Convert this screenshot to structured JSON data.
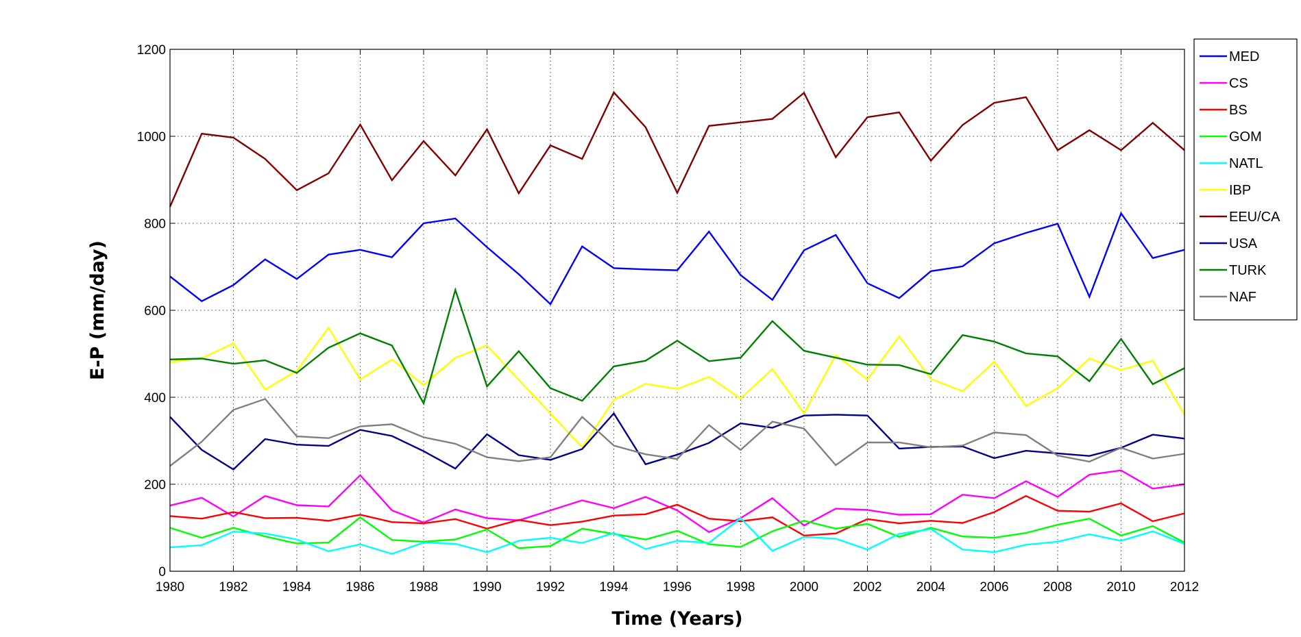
{
  "chart_data": {
    "type": "line",
    "title": "",
    "xlabel": "Time (Years)",
    "ylabel": "E-P (mm/day)",
    "xlim": [
      1980,
      2012
    ],
    "ylim": [
      0,
      1200
    ],
    "grid": true,
    "legend_position": "right, outside",
    "xticks": [
      "1980",
      "1982",
      "1984",
      "1986",
      "1988",
      "1990",
      "1992",
      "1994",
      "1996",
      "1998",
      "2000",
      "2002",
      "2004",
      "2006",
      "2008",
      "2010",
      "2012"
    ],
    "yticks": [
      "0",
      "200",
      "400",
      "600",
      "800",
      "1000",
      "1200"
    ],
    "x": [
      1980,
      1981,
      1982,
      1983,
      1984,
      1985,
      1986,
      1987,
      1988,
      1989,
      1990,
      1991,
      1992,
      1993,
      1994,
      1995,
      1996,
      1997,
      1998,
      1999,
      2000,
      2001,
      2002,
      2003,
      2004,
      2005,
      2006,
      2007,
      2008,
      2009,
      2010,
      2011,
      2012
    ],
    "series": [
      {
        "name": "MED",
        "color": "#0000ff",
        "values": [
          678,
          621,
          658,
          717,
          672,
          728,
          739,
          722,
          800,
          811,
          745,
          683,
          614,
          747,
          697,
          694,
          692,
          781,
          681,
          624,
          738,
          773,
          662,
          628,
          690,
          701,
          754,
          778,
          799,
          631,
          823,
          720,
          739
        ]
      },
      {
        "name": "CS",
        "color": "#ff00ff",
        "values": [
          151,
          169,
          126,
          173,
          152,
          149,
          221,
          140,
          112,
          142,
          122,
          117,
          140,
          163,
          145,
          171,
          140,
          90,
          122,
          168,
          105,
          144,
          141,
          130,
          131,
          176,
          168,
          207,
          171,
          222,
          232,
          190,
          200
        ]
      },
      {
        "name": "BS",
        "color": "#ff0000",
        "values": [
          127,
          121,
          136,
          122,
          123,
          116,
          130,
          113,
          110,
          120,
          98,
          118,
          106,
          114,
          128,
          131,
          153,
          121,
          115,
          124,
          82,
          87,
          120,
          110,
          116,
          111,
          136,
          173,
          139,
          137,
          156,
          115,
          133
        ]
      },
      {
        "name": "GOM",
        "color": "#00ff00",
        "values": [
          100,
          77,
          100,
          80,
          64,
          66,
          124,
          72,
          68,
          73,
          96,
          53,
          58,
          98,
          86,
          73,
          93,
          62,
          56,
          92,
          116,
          98,
          109,
          79,
          100,
          80,
          77,
          88,
          107,
          121,
          82,
          104,
          66
        ]
      },
      {
        "name": "NATL",
        "color": "#00ffff",
        "values": [
          55,
          60,
          91,
          87,
          73,
          46,
          62,
          40,
          66,
          63,
          44,
          70,
          77,
          65,
          88,
          51,
          70,
          65,
          122,
          47,
          79,
          75,
          50,
          86,
          97,
          50,
          44,
          61,
          68,
          85,
          70,
          92,
          63
        ]
      },
      {
        "name": "IBP",
        "color": "#ffff00",
        "values": [
          481,
          490,
          524,
          418,
          461,
          560,
          441,
          487,
          428,
          491,
          519,
          440,
          363,
          285,
          394,
          431,
          419,
          447,
          397,
          465,
          363,
          497,
          441,
          540,
          442,
          414,
          482,
          380,
          421,
          489,
          463,
          484,
          360
        ]
      },
      {
        "name": "EEU/CA",
        "color": "#800000",
        "values": [
          838,
          1006,
          997,
          948,
          876,
          915,
          1027,
          899,
          989,
          910,
          1016,
          869,
          979,
          948,
          1101,
          1021,
          870,
          1024,
          1032,
          1040,
          1100,
          952,
          1044,
          1055,
          944,
          1026,
          1077,
          1090,
          968,
          1014,
          968,
          1031,
          968
        ]
      },
      {
        "name": "USA",
        "color": "#00008b",
        "values": [
          355,
          279,
          234,
          304,
          291,
          288,
          325,
          311,
          276,
          236,
          315,
          267,
          256,
          281,
          363,
          246,
          268,
          295,
          340,
          330,
          358,
          360,
          358,
          282,
          286,
          287,
          260,
          277,
          271,
          265,
          284,
          314,
          305
        ]
      },
      {
        "name": "TURK",
        "color": "#008000",
        "values": [
          487,
          489,
          477,
          485,
          456,
          514,
          547,
          519,
          386,
          647,
          425,
          506,
          421,
          392,
          471,
          484,
          530,
          483,
          491,
          575,
          507,
          491,
          475,
          474,
          453,
          543,
          528,
          501,
          494,
          437,
          534,
          430,
          467
        ]
      },
      {
        "name": "NAF",
        "color": "#808080",
        "values": [
          242,
          298,
          371,
          396,
          310,
          306,
          333,
          338,
          308,
          293,
          262,
          253,
          262,
          355,
          289,
          269,
          258,
          336,
          279,
          344,
          328,
          244,
          296,
          296,
          285,
          289,
          319,
          313,
          266,
          252,
          284,
          259,
          270
        ]
      }
    ]
  }
}
